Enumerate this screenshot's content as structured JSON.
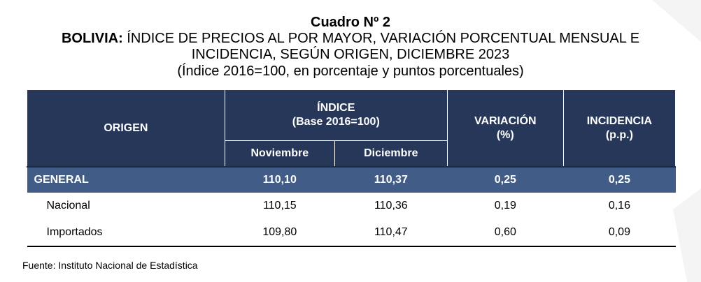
{
  "title": {
    "number": "Cuadro Nº 2",
    "prefix": "BOLIVIA:",
    "line1": "ÍNDICE DE PRECIOS AL POR MAYOR, VARIACIÓN PORCENTUAL MENSUAL E",
    "line2": "INCIDENCIA, SEGÚN ORIGEN, DICIEMBRE 2023",
    "line3": "(Índice 2016=100, en porcentaje y puntos porcentuales)"
  },
  "table": {
    "headers": {
      "origen": "ORIGEN",
      "indice": "ÍNDICE",
      "indice_base": "(Base 2016=100)",
      "noviembre": "Noviembre",
      "diciembre": "Diciembre",
      "variacion": "VARIACIÓN",
      "variacion_unit": "(%)",
      "incidencia": "INCIDENCIA",
      "incidencia_unit": "(p.p.)"
    },
    "rows": [
      {
        "origen": "GENERAL",
        "noviembre": "110,10",
        "diciembre": "110,37",
        "variacion": "0,25",
        "incidencia": "0,25"
      },
      {
        "origen": "Nacional",
        "noviembre": "110,15",
        "diciembre": "110,36",
        "variacion": "0,19",
        "incidencia": "0,16"
      },
      {
        "origen": "Importados",
        "noviembre": "109,80",
        "diciembre": "110,47",
        "variacion": "0,60",
        "incidencia": "0,09"
      }
    ]
  },
  "source": "Fuente: Instituto Nacional de Estadística",
  "colors": {
    "header": "#26375a",
    "general_row": "#415c87"
  }
}
